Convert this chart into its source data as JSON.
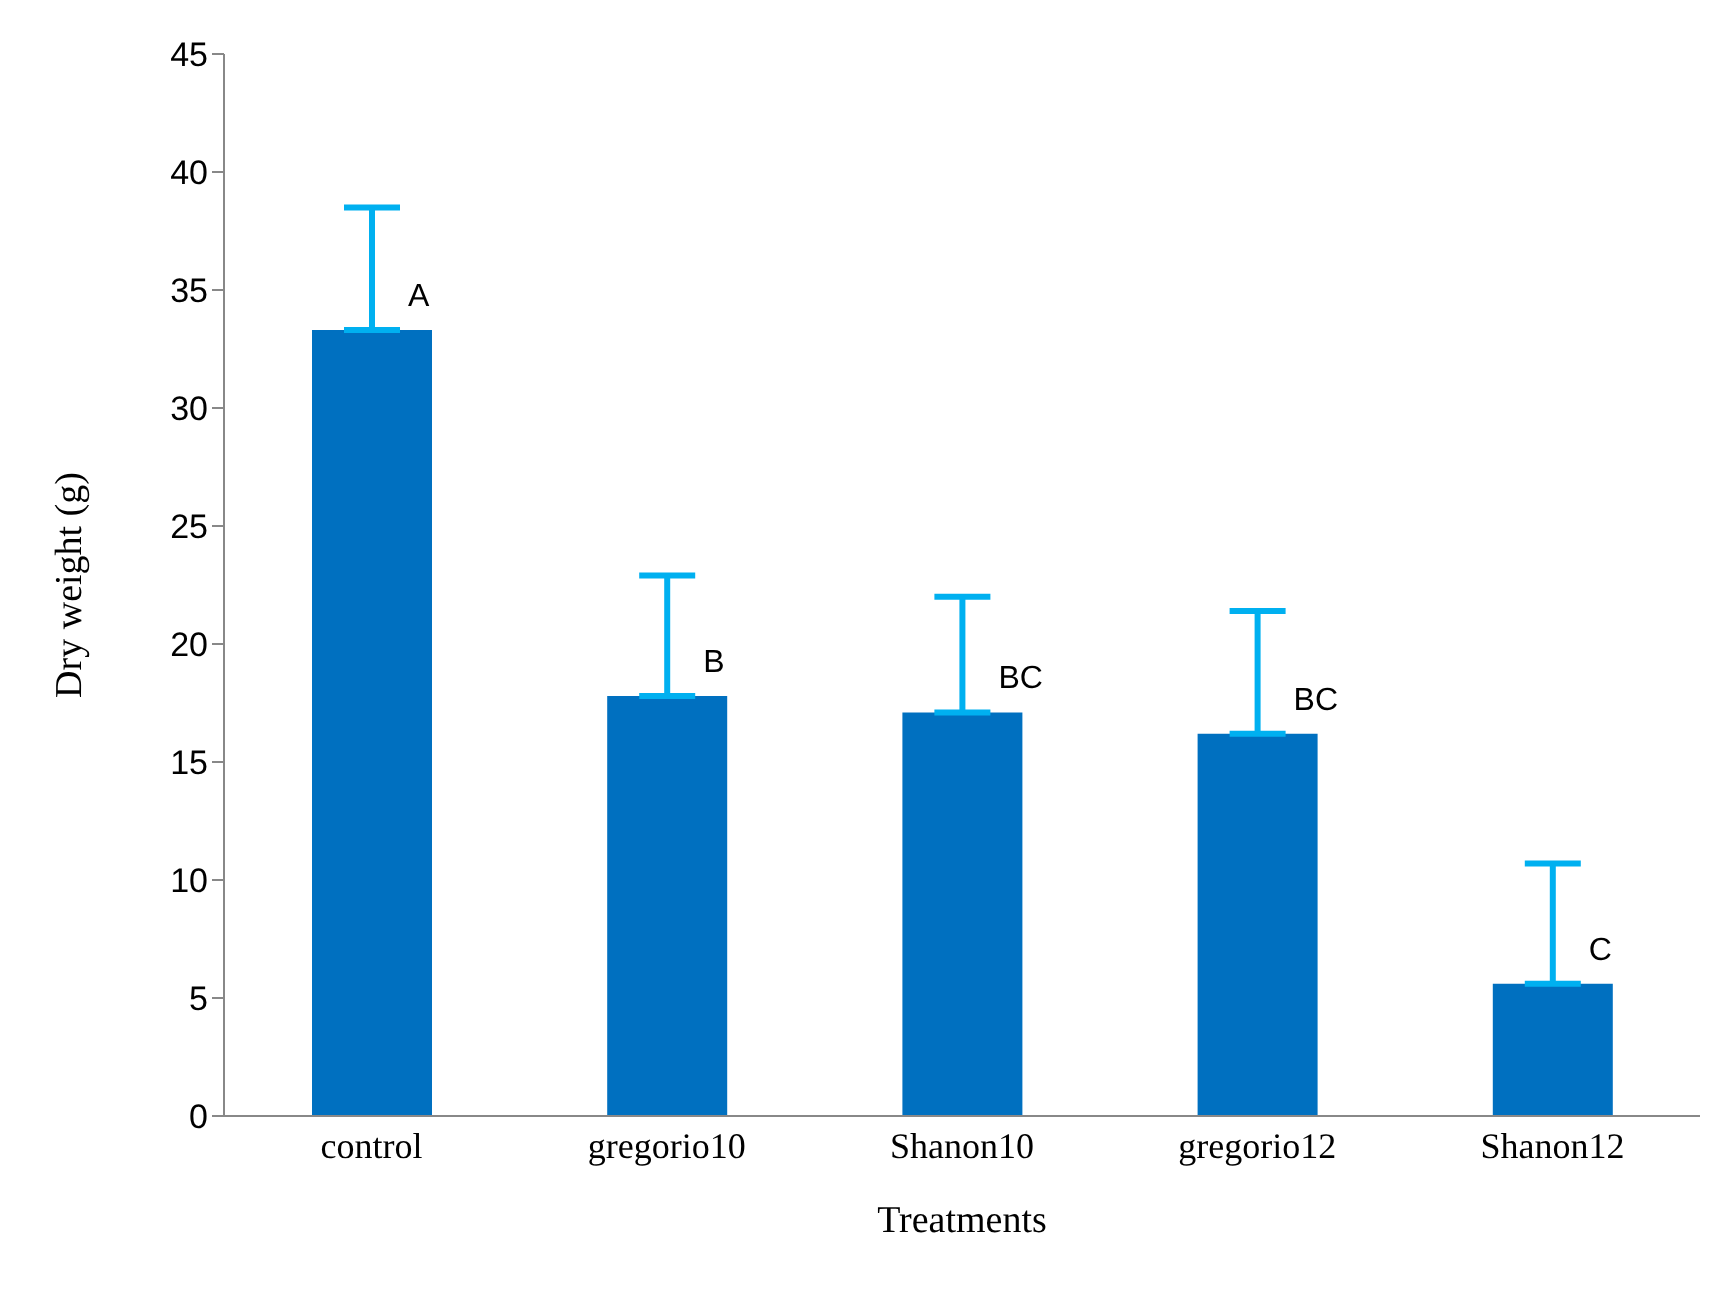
{
  "chart_data": {
    "type": "bar",
    "xlabel": "Treatments",
    "ylabel": "Dry weight (g)",
    "categories": [
      "control",
      "gregorio10",
      "Shanon10",
      "gregorio12",
      "Shanon12"
    ],
    "values": [
      33.3,
      17.8,
      17.1,
      16.2,
      5.6
    ],
    "color": "#0070c0",
    "errors": [
      [
        33.3,
        38.5
      ],
      [
        17.8,
        22.9
      ],
      [
        17.1,
        22.0
      ],
      [
        16.2,
        21.4
      ],
      [
        5.6,
        10.7
      ]
    ],
    "ylim": [
      0,
      45
    ],
    "yticks": [
      0,
      5,
      10,
      15,
      20,
      25,
      30,
      35,
      40,
      45
    ],
    "grid": false,
    "legend": false,
    "annotations": [
      {
        "text": "A",
        "x": "control",
        "y": 33.3
      },
      {
        "text": "B",
        "x": "gregorio10",
        "y": 17.8
      },
      {
        "text": "BC",
        "x": "Shanon10",
        "y": 17.1
      },
      {
        "text": "BC",
        "x": "gregorio12",
        "y": 16.2
      },
      {
        "text": "C",
        "x": "Shanon12",
        "y": 5.6
      }
    ]
  }
}
